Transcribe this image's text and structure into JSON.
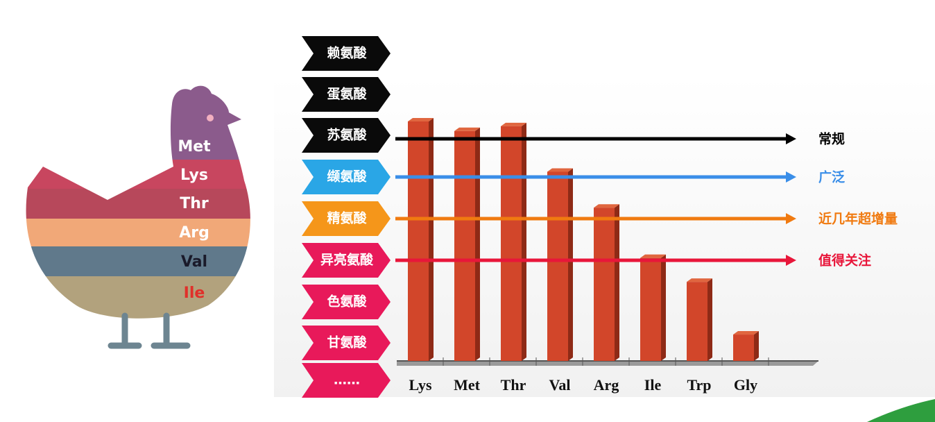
{
  "chicken": {
    "labels": [
      "Met",
      "Lys",
      "Thr",
      "Arg",
      "Val",
      "Ile"
    ]
  },
  "chevrons": [
    "赖氨酸",
    "蛋氨酸",
    "苏氨酸",
    "缬氨酸",
    "精氨酸",
    "异亮氨酸",
    "色氨酸",
    "甘氨酸",
    "……"
  ],
  "arrows": [
    {
      "label": "常规",
      "color": "#000000"
    },
    {
      "label": "广泛",
      "color": "#3a8ee8"
    },
    {
      "label": "近几年超增量",
      "color": "#f07a10"
    },
    {
      "label": "值得关注",
      "color": "#e8163a"
    }
  ],
  "chart_data": {
    "type": "bar",
    "categories": [
      "Lys",
      "Met",
      "Thr",
      "Val",
      "Arg",
      "Ile",
      "Trp",
      "Gly"
    ],
    "values": [
      100,
      96,
      98,
      79,
      64,
      43,
      33,
      11
    ],
    "color": "#d2462a"
  }
}
